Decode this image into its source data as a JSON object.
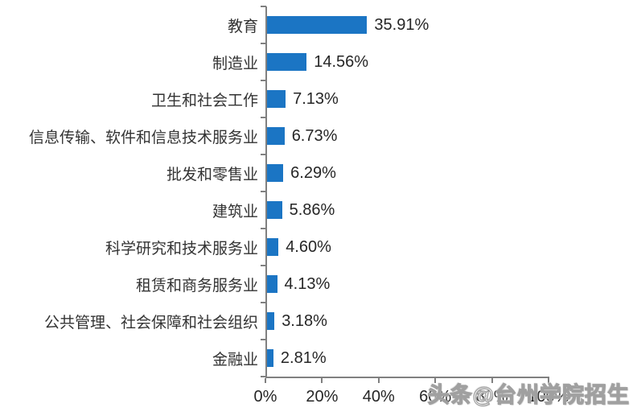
{
  "chart_data": {
    "type": "bar",
    "orientation": "horizontal",
    "title": "",
    "xlabel": "",
    "ylabel": "",
    "xlim": [
      0,
      100
    ],
    "grid": false,
    "legend": false,
    "bar_color": "#1B75C4",
    "axis_color": "#808080",
    "categories": [
      "教育",
      "制造业",
      "卫生和社会工作",
      "信息传输、软件和信息技术服务业",
      "批发和零售业",
      "建筑业",
      "科学研究和技术服务业",
      "租赁和商务服务业",
      "公共管理、社会保障和社会组织",
      "金融业"
    ],
    "values": [
      35.91,
      14.56,
      7.13,
      6.73,
      6.29,
      5.86,
      4.6,
      4.13,
      3.18,
      2.81
    ],
    "value_labels": [
      "35.91%",
      "14.56%",
      "7.13%",
      "6.73%",
      "6.29%",
      "5.86%",
      "4.60%",
      "4.13%",
      "3.18%",
      "2.81%"
    ],
    "x_ticks": [
      {
        "value": 0,
        "label": "0%"
      },
      {
        "value": 20,
        "label": "20%"
      },
      {
        "value": 40,
        "label": "40%"
      },
      {
        "value": 60,
        "label": "60%"
      },
      {
        "value": 80,
        "label": "80%"
      },
      {
        "value": 100,
        "label": "100%"
      }
    ]
  },
  "watermark": {
    "text": "头条@台州学院招生"
  }
}
